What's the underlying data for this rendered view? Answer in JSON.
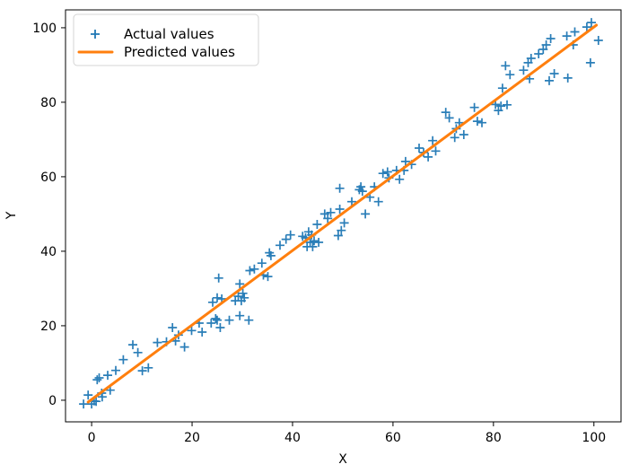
{
  "chart_data": {
    "type": "scatter",
    "title": "",
    "xlabel": "X",
    "ylabel": "Y",
    "xlim": [
      -5.2,
      105.4
    ],
    "ylim": [
      -5.8,
      104.8
    ],
    "xticks": [
      0,
      20,
      40,
      60,
      80,
      100
    ],
    "yticks": [
      0,
      20,
      40,
      60,
      80,
      100
    ],
    "grid": false,
    "legend": {
      "position": "upper left",
      "entries": [
        {
          "label": "Actual values",
          "type": "marker",
          "marker": "plus-icon",
          "color": "#1f77b4"
        },
        {
          "label": "Predicted values",
          "type": "line",
          "color": "#ff7f0e"
        }
      ]
    },
    "series": [
      {
        "name": "Actual values",
        "kind": "scatter",
        "marker": "+",
        "marker_size": 10,
        "marker_stroke_width": 1.7,
        "color": "#1f77b4",
        "points": [
          [
            -1.6,
            -1.0
          ],
          [
            -0.7,
            1.4
          ],
          [
            0.0,
            -1.0
          ],
          [
            0.5,
            -0.2
          ],
          [
            0.9,
            -0.3
          ],
          [
            1.1,
            5.5
          ],
          [
            1.5,
            6.0
          ],
          [
            2.0,
            1.9
          ],
          [
            2.1,
            0.9
          ],
          [
            3.2,
            6.7
          ],
          [
            3.7,
            2.7
          ],
          [
            4.8,
            8.0
          ],
          [
            6.3,
            10.9
          ],
          [
            8.2,
            14.9
          ],
          [
            9.2,
            12.8
          ],
          [
            10.1,
            7.9
          ],
          [
            11.3,
            8.7
          ],
          [
            13.1,
            15.5
          ],
          [
            14.9,
            15.7
          ],
          [
            16.1,
            19.5
          ],
          [
            16.7,
            15.9
          ],
          [
            17.3,
            17.5
          ],
          [
            18.5,
            14.3
          ],
          [
            19.9,
            18.7
          ],
          [
            21.4,
            20.7
          ],
          [
            22.0,
            18.3
          ],
          [
            23.8,
            20.7
          ],
          [
            24.1,
            26.3
          ],
          [
            24.7,
            21.9
          ],
          [
            25.0,
            21.5
          ],
          [
            25.0,
            27.5
          ],
          [
            25.3,
            32.8
          ],
          [
            25.6,
            19.5
          ],
          [
            25.9,
            27.2
          ],
          [
            27.4,
            21.5
          ],
          [
            28.6,
            26.7
          ],
          [
            29.2,
            27.9
          ],
          [
            29.5,
            22.7
          ],
          [
            29.5,
            31.2
          ],
          [
            29.8,
            26.7
          ],
          [
            30.1,
            28.7
          ],
          [
            30.4,
            27.5
          ],
          [
            31.3,
            21.5
          ],
          [
            31.5,
            34.8
          ],
          [
            32.4,
            35.2
          ],
          [
            33.9,
            36.8
          ],
          [
            34.2,
            33.6
          ],
          [
            35.1,
            33.2
          ],
          [
            35.4,
            39.6
          ],
          [
            35.7,
            38.8
          ],
          [
            37.5,
            41.6
          ],
          [
            38.7,
            43.2
          ],
          [
            39.6,
            44.4
          ],
          [
            42.0,
            44.0
          ],
          [
            42.6,
            43.6
          ],
          [
            42.9,
            41.2
          ],
          [
            43.2,
            45.2
          ],
          [
            43.5,
            42.4
          ],
          [
            43.8,
            44.4
          ],
          [
            44.0,
            41.2
          ],
          [
            44.3,
            42.8
          ],
          [
            44.9,
            47.2
          ],
          [
            45.2,
            42.4
          ],
          [
            46.4,
            50.0
          ],
          [
            47.0,
            48.8
          ],
          [
            47.6,
            50.4
          ],
          [
            49.1,
            44.2
          ],
          [
            49.4,
            51.3
          ],
          [
            49.4,
            56.9
          ],
          [
            49.7,
            45.6
          ],
          [
            50.3,
            47.6
          ],
          [
            51.8,
            53.3
          ],
          [
            53.3,
            56.5
          ],
          [
            53.6,
            57.3
          ],
          [
            53.9,
            56.1
          ],
          [
            54.5,
            50.0
          ],
          [
            55.4,
            54.5
          ],
          [
            56.3,
            57.3
          ],
          [
            57.1,
            53.3
          ],
          [
            58.0,
            60.9
          ],
          [
            58.9,
            61.3
          ],
          [
            59.2,
            59.7
          ],
          [
            60.7,
            61.7
          ],
          [
            61.3,
            59.3
          ],
          [
            62.2,
            61.7
          ],
          [
            62.5,
            64.1
          ],
          [
            63.7,
            63.3
          ],
          [
            65.2,
            67.7
          ],
          [
            66.1,
            66.5
          ],
          [
            67.0,
            65.3
          ],
          [
            67.9,
            69.7
          ],
          [
            68.5,
            66.9
          ],
          [
            70.5,
            77.3
          ],
          [
            71.2,
            75.8
          ],
          [
            72.3,
            70.5
          ],
          [
            72.6,
            72.9
          ],
          [
            73.2,
            74.5
          ],
          [
            74.1,
            71.3
          ],
          [
            76.2,
            78.6
          ],
          [
            76.8,
            74.9
          ],
          [
            77.7,
            74.5
          ],
          [
            80.4,
            79.4
          ],
          [
            81.0,
            77.8
          ],
          [
            81.5,
            79.0
          ],
          [
            81.8,
            83.8
          ],
          [
            82.4,
            89.8
          ],
          [
            82.7,
            79.3
          ],
          [
            83.3,
            87.4
          ],
          [
            86.0,
            88.6
          ],
          [
            86.9,
            90.6
          ],
          [
            87.2,
            86.3
          ],
          [
            87.5,
            91.8
          ],
          [
            89.0,
            93.0
          ],
          [
            89.9,
            94.2
          ],
          [
            90.5,
            95.4
          ],
          [
            91.1,
            85.8
          ],
          [
            91.4,
            97.1
          ],
          [
            92.1,
            87.7
          ],
          [
            94.6,
            97.8
          ],
          [
            94.8,
            86.5
          ],
          [
            95.9,
            95.4
          ],
          [
            96.2,
            98.9
          ],
          [
            98.6,
            100.2
          ],
          [
            99.3,
            90.6
          ],
          [
            99.5,
            101.4
          ],
          [
            100.9,
            96.6
          ]
        ]
      },
      {
        "name": "Predicted values",
        "kind": "line",
        "color": "#ff7f0e",
        "line_width": 3,
        "points": [
          [
            -0.7,
            -0.5
          ],
          [
            100.5,
            100.7
          ]
        ]
      }
    ]
  },
  "colors": {
    "actual": "#1f77b4",
    "predicted": "#ff7f0e",
    "spine": "#000000",
    "background": "#ffffff",
    "legend_border": "#d4d4d4"
  }
}
